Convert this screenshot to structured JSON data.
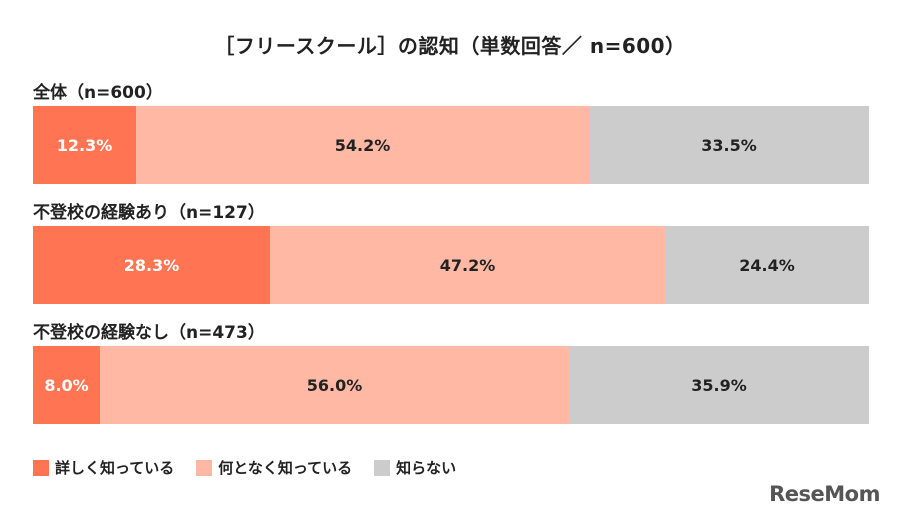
{
  "chart_data": {
    "type": "bar",
    "orientation": "horizontal-stacked-100",
    "title": "［フリースクール］の認知（単数回答／ n=600）",
    "groups": [
      {
        "label": "全体（n=600）",
        "values": [
          12.3,
          54.2,
          33.5
        ],
        "value_labels": [
          "12.3%",
          "54.2%",
          "33.5%"
        ]
      },
      {
        "label": "不登校の経験あり（n=127）",
        "values": [
          28.3,
          47.2,
          24.4
        ],
        "value_labels": [
          "28.3%",
          "47.2%",
          "24.4%"
        ]
      },
      {
        "label": "不登校の経験なし（n=473）",
        "values": [
          8.0,
          56.0,
          35.9
        ],
        "value_labels": [
          "8.0%",
          "56.0%",
          "35.9%"
        ]
      }
    ],
    "series": [
      {
        "name": "詳しく知っている",
        "color": "#ff7553"
      },
      {
        "name": "何となく知っている",
        "color": "#ffb8a4"
      },
      {
        "name": "知らない",
        "color": "#cccccc"
      }
    ],
    "legend_position": "bottom-left",
    "grid": false
  },
  "watermark": "ReseMom"
}
